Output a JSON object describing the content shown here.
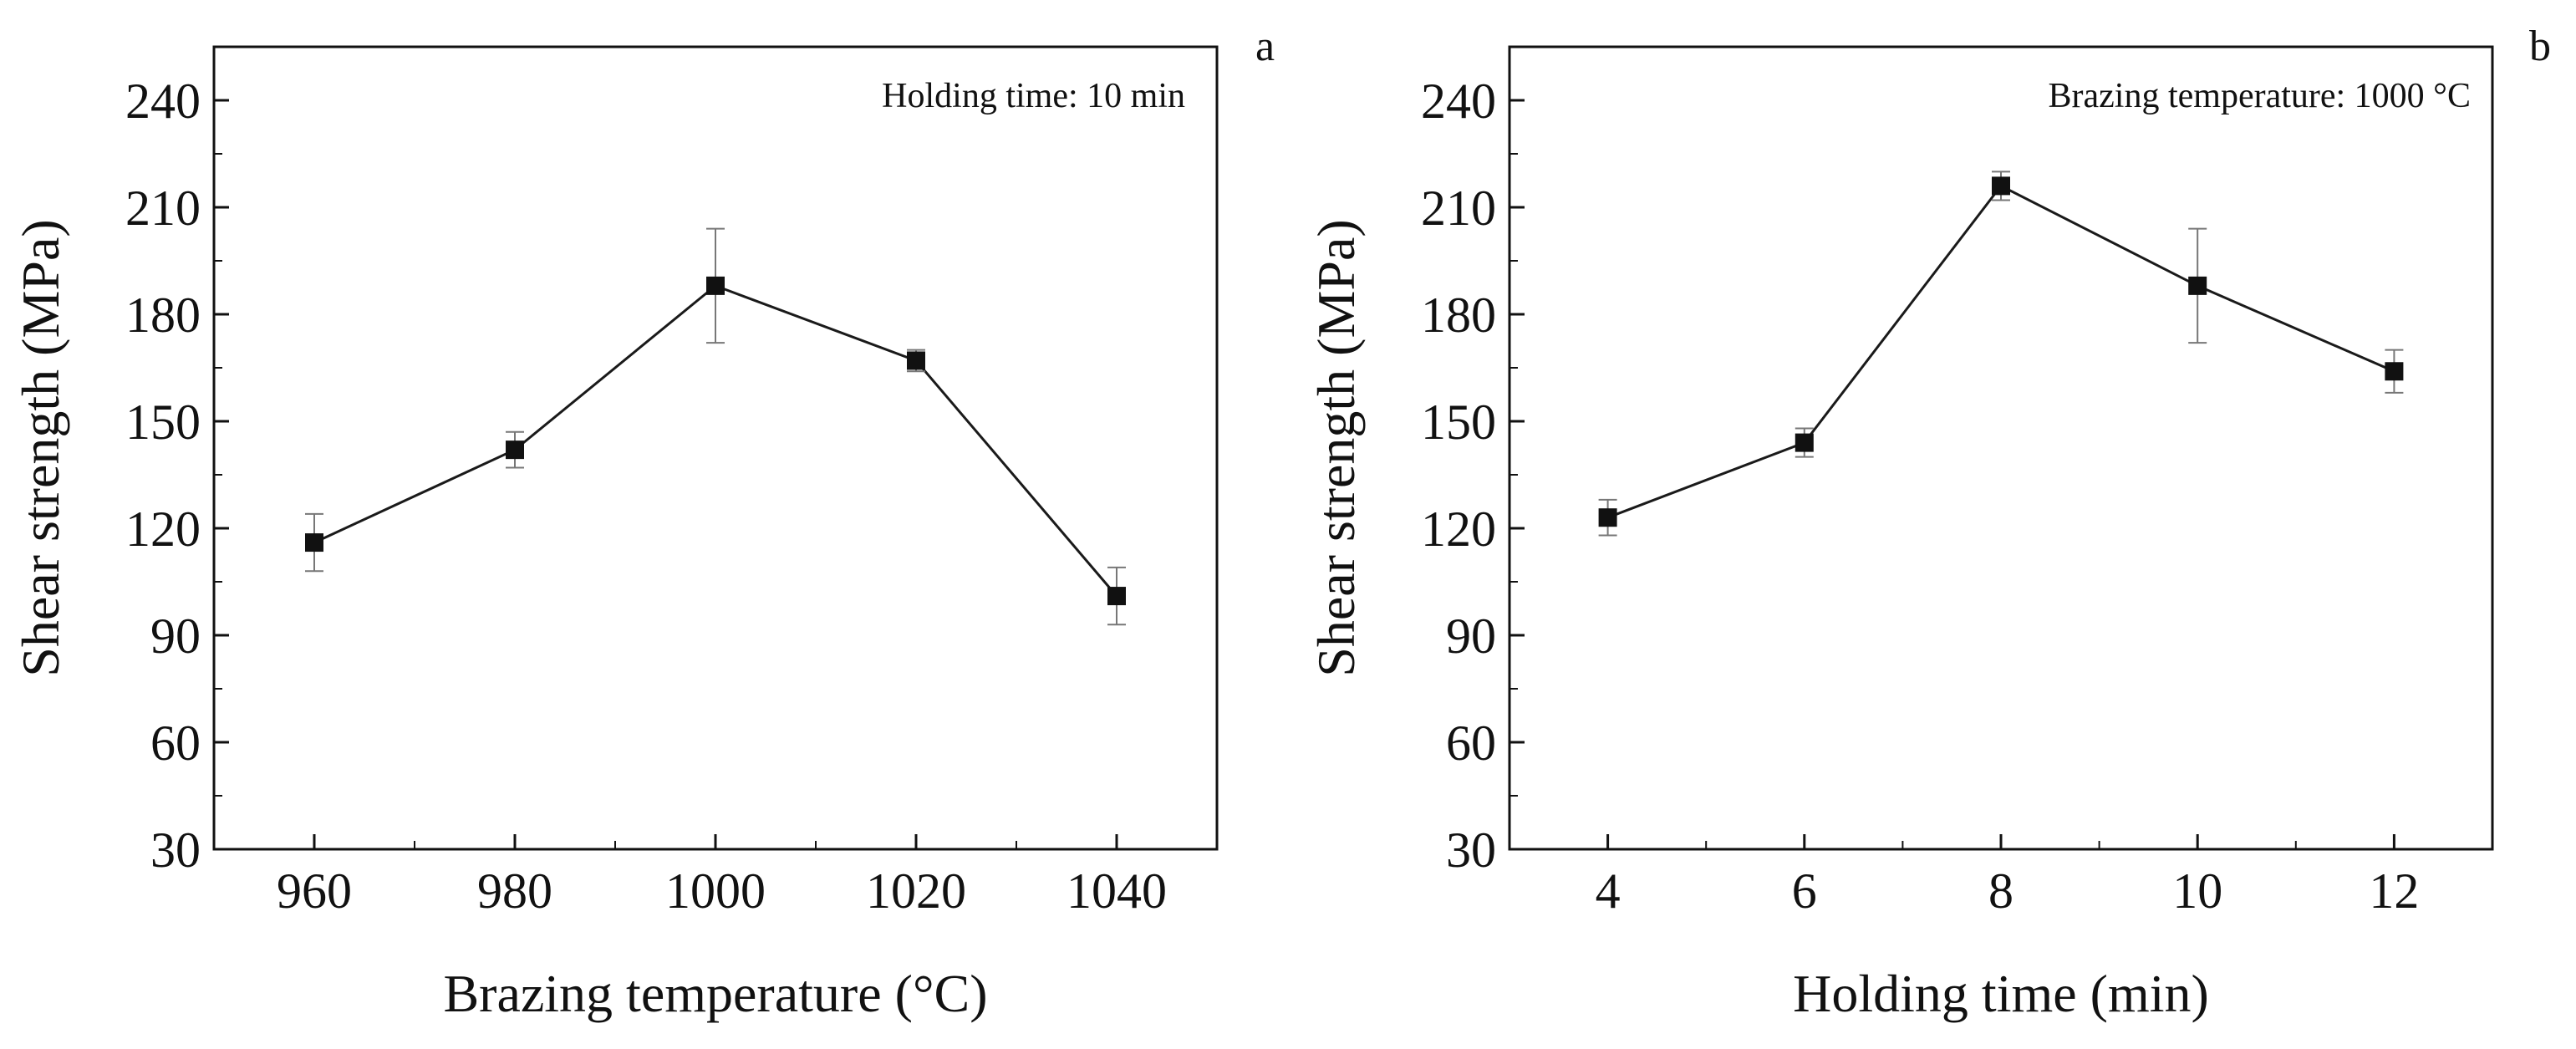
{
  "colors": {
    "line": "#1a1a1a",
    "marker": "#111111",
    "error_bar": "#777777",
    "axis": "#111111"
  },
  "chart_data": [
    {
      "type": "line",
      "panel_label": "a",
      "annotation": "Holding time: 10 min",
      "xlabel": "Brazing temperature (°C)",
      "ylabel": "Shear strength (MPa)",
      "xlim": [
        950,
        1050
      ],
      "ylim": [
        30,
        255
      ],
      "x_ticks": [
        960,
        980,
        1000,
        1020,
        1040
      ],
      "y_ticks": [
        30,
        60,
        90,
        120,
        150,
        180,
        210,
        240
      ],
      "x": [
        960,
        980,
        1000,
        1020,
        1040
      ],
      "series": [
        {
          "name": "Shear strength",
          "values": [
            116,
            142,
            188,
            167,
            101
          ],
          "errors": [
            8,
            5,
            16,
            3,
            8
          ]
        }
      ]
    },
    {
      "type": "line",
      "panel_label": "b",
      "annotation": "Brazing temperature: 1000 °C",
      "xlabel": "Holding time (min)",
      "ylabel": "Shear strength (MPa)",
      "xlim": [
        3,
        13
      ],
      "ylim": [
        30,
        255
      ],
      "x_ticks": [
        4,
        6,
        8,
        10,
        12
      ],
      "y_ticks": [
        30,
        60,
        90,
        120,
        150,
        180,
        210,
        240
      ],
      "x": [
        4,
        6,
        8,
        10,
        12
      ],
      "series": [
        {
          "name": "Shear strength",
          "values": [
            123,
            144,
            216,
            188,
            164
          ],
          "errors": [
            5,
            4,
            4,
            16,
            6
          ]
        }
      ]
    }
  ]
}
